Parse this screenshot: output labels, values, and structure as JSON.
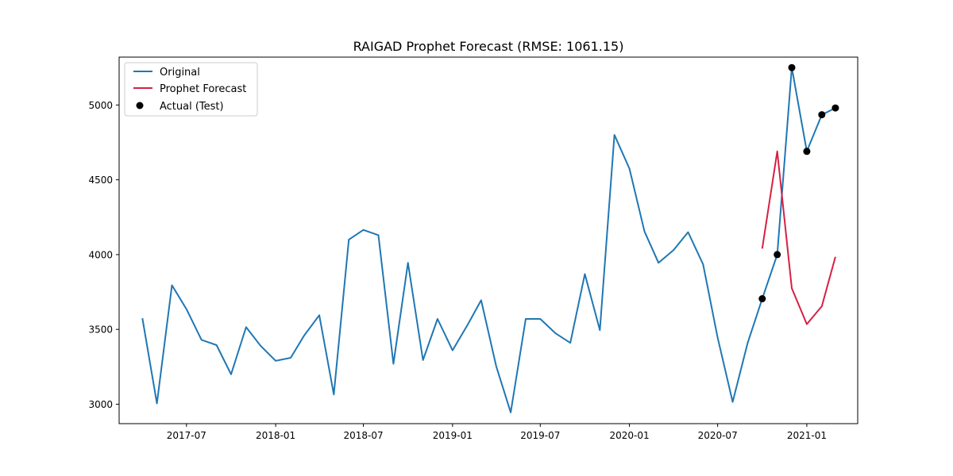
{
  "chart_data": {
    "type": "line",
    "title": "RAIGAD Prophet Forecast (RMSE: 1061.15)",
    "xlabel": "",
    "ylabel": "",
    "x_range": [
      "2017-02-12",
      "2021-04-16"
    ],
    "ylim": [
      2870,
      5320
    ],
    "x_ticks": [
      "2017-07",
      "2018-01",
      "2018-07",
      "2019-01",
      "2019-07",
      "2020-01",
      "2020-07",
      "2021-01"
    ],
    "y_ticks": [
      3000,
      3500,
      4000,
      4500,
      5000
    ],
    "grid": false,
    "legend_position": "top-left",
    "colors": {
      "original": "#1f77b4",
      "forecast": "#d62043",
      "actual": "#000000"
    },
    "series": [
      {
        "name": "Original",
        "kind": "line",
        "points": [
          [
            "2017-04",
            3575
          ],
          [
            "2017-05",
            3005
          ],
          [
            "2017-06",
            3795
          ],
          [
            "2017-07",
            3635
          ],
          [
            "2017-08",
            3430
          ],
          [
            "2017-09",
            3395
          ],
          [
            "2017-10",
            3200
          ],
          [
            "2017-11",
            3515
          ],
          [
            "2017-12",
            3390
          ],
          [
            "2018-01",
            3290
          ],
          [
            "2018-02",
            3310
          ],
          [
            "2018-03",
            3460
          ],
          [
            "2018-04",
            3595
          ],
          [
            "2018-05",
            3065
          ],
          [
            "2018-06",
            4100
          ],
          [
            "2018-07",
            4165
          ],
          [
            "2018-08",
            4130
          ],
          [
            "2018-09",
            3270
          ],
          [
            "2018-10",
            3945
          ],
          [
            "2018-11",
            3295
          ],
          [
            "2018-12",
            3570
          ],
          [
            "2019-01",
            3360
          ],
          [
            "2019-02",
            3530
          ],
          [
            "2019-03",
            3695
          ],
          [
            "2019-04",
            3255
          ],
          [
            "2019-05",
            2945
          ],
          [
            "2019-06",
            3570
          ],
          [
            "2019-07",
            3570
          ],
          [
            "2019-08",
            3475
          ],
          [
            "2019-09",
            3410
          ],
          [
            "2019-10",
            3870
          ],
          [
            "2019-11",
            3495
          ],
          [
            "2019-12",
            4800
          ],
          [
            "2020-01",
            4575
          ],
          [
            "2020-02",
            4155
          ],
          [
            "2020-03",
            3945
          ],
          [
            "2020-04",
            4030
          ],
          [
            "2020-05",
            4150
          ],
          [
            "2020-06",
            3935
          ],
          [
            "2020-07",
            3445
          ],
          [
            "2020-08",
            3015
          ],
          [
            "2020-09",
            3410
          ],
          [
            "2020-10",
            3705
          ],
          [
            "2020-11",
            4000
          ],
          [
            "2020-12",
            5250
          ],
          [
            "2021-01",
            4690
          ],
          [
            "2021-02",
            4935
          ],
          [
            "2021-03",
            4980
          ]
        ]
      },
      {
        "name": "Prophet Forecast",
        "kind": "line",
        "points": [
          [
            "2020-10",
            4040
          ],
          [
            "2020-11",
            4690
          ],
          [
            "2020-12",
            3775
          ],
          [
            "2021-01",
            3535
          ],
          [
            "2021-02",
            3655
          ],
          [
            "2021-03",
            3985
          ]
        ]
      },
      {
        "name": "Actual (Test)",
        "kind": "scatter",
        "points": [
          [
            "2020-10",
            3705
          ],
          [
            "2020-11",
            4000
          ],
          [
            "2020-12",
            5250
          ],
          [
            "2021-01",
            4690
          ],
          [
            "2021-02",
            4935
          ],
          [
            "2021-03",
            4980
          ]
        ]
      }
    ]
  }
}
